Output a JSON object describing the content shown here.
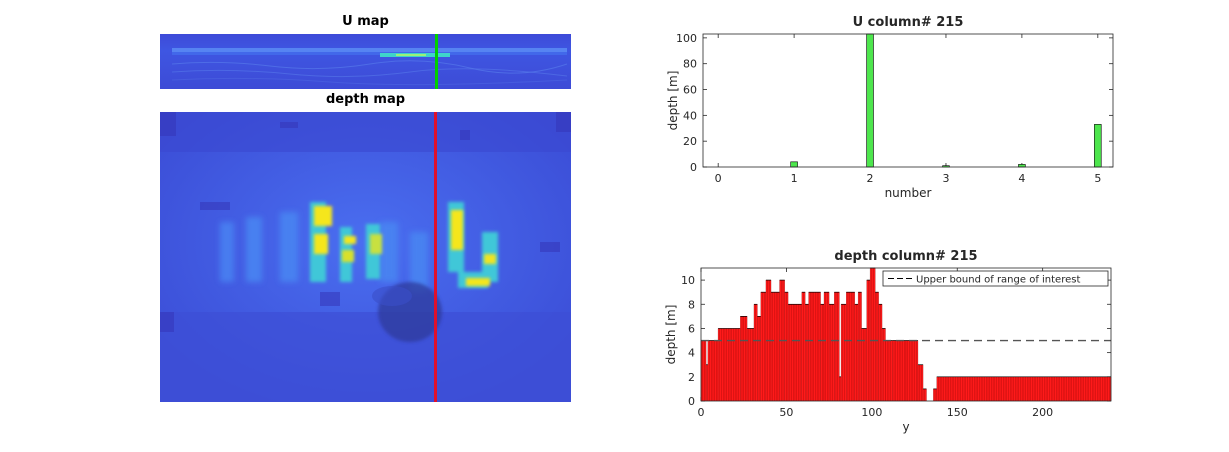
{
  "umap": {
    "title": "U map"
  },
  "depthmap": {
    "title": "depth map"
  },
  "colors": {
    "bar_green": "#4de64d",
    "bar_red": "#ff1a1a",
    "green_line": "#00d000",
    "red_line": "#e0102c",
    "map_blue": "#3d4fd8"
  },
  "chart_data": [
    {
      "type": "bar",
      "title": "U column# 215",
      "xlabel": "number",
      "ylabel": "depth [m]",
      "x": [
        1,
        2,
        3,
        4,
        5
      ],
      "values": [
        4,
        103,
        1,
        2,
        33
      ],
      "xlim": [
        -0.2,
        5.2
      ],
      "ylim": [
        0,
        103
      ],
      "xticks": [
        0,
        1,
        2,
        3,
        4,
        5
      ],
      "yticks": [
        0,
        20,
        40,
        60,
        80,
        100
      ],
      "grid": false
    },
    {
      "type": "bar",
      "title": "depth column# 215",
      "xlabel": "y",
      "ylabel": "depth [m]",
      "xlim": [
        0,
        240
      ],
      "ylim": [
        0,
        11
      ],
      "xticks": [
        0,
        50,
        100,
        150,
        200
      ],
      "yticks": [
        0,
        2,
        4,
        6,
        8,
        10
      ],
      "legend": {
        "entries": [
          "Upper bound of range of interest"
        ],
        "placement": "top-right"
      },
      "reference_line": {
        "y": 5,
        "style": "dashed",
        "name": "Upper bound of range of interest"
      },
      "segments": [
        {
          "x": [
            0,
            3
          ],
          "y": 5
        },
        {
          "x": [
            3,
            4
          ],
          "y": 3
        },
        {
          "x": [
            4,
            10
          ],
          "y": 5
        },
        {
          "x": [
            10,
            23
          ],
          "y": 6
        },
        {
          "x": [
            23,
            27
          ],
          "y": 7
        },
        {
          "x": [
            27,
            31
          ],
          "y": 6
        },
        {
          "x": [
            31,
            33
          ],
          "y": 8
        },
        {
          "x": [
            33,
            35
          ],
          "y": 7
        },
        {
          "x": [
            35,
            38
          ],
          "y": 9
        },
        {
          "x": [
            38,
            41
          ],
          "y": 10
        },
        {
          "x": [
            41,
            46
          ],
          "y": 9
        },
        {
          "x": [
            46,
            49
          ],
          "y": 10
        },
        {
          "x": [
            49,
            51
          ],
          "y": 9
        },
        {
          "x": [
            51,
            59
          ],
          "y": 8
        },
        {
          "x": [
            59,
            61
          ],
          "y": 9
        },
        {
          "x": [
            61,
            63
          ],
          "y": 8
        },
        {
          "x": [
            63,
            70
          ],
          "y": 9
        },
        {
          "x": [
            70,
            72
          ],
          "y": 8
        },
        {
          "x": [
            72,
            75
          ],
          "y": 9
        },
        {
          "x": [
            75,
            78
          ],
          "y": 8
        },
        {
          "x": [
            78,
            81
          ],
          "y": 9
        },
        {
          "x": [
            81,
            82
          ],
          "y": 2
        },
        {
          "x": [
            82,
            85
          ],
          "y": 8
        },
        {
          "x": [
            85,
            90
          ],
          "y": 9
        },
        {
          "x": [
            90,
            92
          ],
          "y": 8
        },
        {
          "x": [
            92,
            94
          ],
          "y": 9
        },
        {
          "x": [
            94,
            97
          ],
          "y": 6
        },
        {
          "x": [
            97,
            99
          ],
          "y": 10
        },
        {
          "x": [
            99,
            102
          ],
          "y": 11
        },
        {
          "x": [
            102,
            104
          ],
          "y": 9
        },
        {
          "x": [
            104,
            106
          ],
          "y": 8
        },
        {
          "x": [
            106,
            108
          ],
          "y": 6
        },
        {
          "x": [
            108,
            112
          ],
          "y": 5
        },
        {
          "x": [
            112,
            120
          ],
          "y": 5
        },
        {
          "x": [
            120,
            127
          ],
          "y": 5
        },
        {
          "x": [
            127,
            130
          ],
          "y": 3
        },
        {
          "x": [
            130,
            132
          ],
          "y": 1
        },
        {
          "x": [
            136,
            138
          ],
          "y": 1
        },
        {
          "x": [
            138,
            240
          ],
          "y": 2
        }
      ]
    }
  ]
}
